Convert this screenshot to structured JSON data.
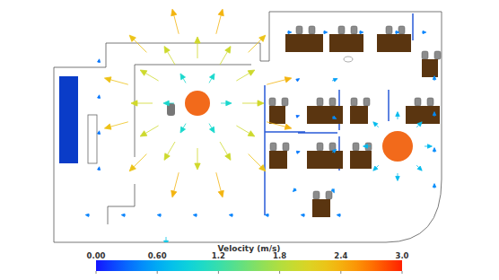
{
  "chart_data": {
    "type": "vector_field",
    "tick_labels": false,
    "xlim": [
      0,
      22
    ],
    "ylim": [
      0,
      13
    ],
    "x": [
      10.5,
      10.17,
      9.25,
      8.0,
      6.75,
      5.83,
      5.5,
      5.83,
      6.75,
      8.0,
      9.25,
      10.17,
      11.86,
      10.83,
      9.04,
      6.96,
      5.17,
      4.14,
      4.14,
      5.17,
      6.96,
      9.04,
      10.83,
      11.86,
      9.3,
      8.65,
      7.35,
      6.7,
      7.35,
      8.65,
      20.65,
      20.21,
      19.15,
      18.09,
      17.65,
      18.09,
      19.15,
      20.21,
      2,
      4,
      6,
      8,
      10,
      12,
      14,
      16,
      2.5,
      2.5,
      2.5,
      2.5,
      13,
      15,
      17,
      19,
      20.5,
      21.2,
      21.2,
      21.2,
      21.2,
      13.5,
      15.5,
      13.5,
      15.5,
      13.5,
      15.5,
      13.5,
      15.5,
      6.25
    ],
    "y": [
      7.75,
      9.0,
      9.9,
      10.25,
      9.9,
      9.0,
      7.75,
      6.5,
      5.6,
      5.25,
      5.6,
      6.5,
      8.79,
      10.58,
      11.61,
      11.61,
      10.58,
      8.79,
      6.71,
      4.92,
      3.89,
      3.89,
      4.92,
      6.71,
      7.75,
      8.88,
      8.88,
      7.75,
      6.62,
      6.62,
      5.35,
      6.41,
      6.85,
      6.41,
      5.35,
      4.29,
      3.85,
      4.29,
      1.5,
      1.5,
      1.5,
      1.5,
      1.5,
      1.5,
      1.5,
      1.5,
      4,
      6,
      8,
      10,
      11.7,
      11.7,
      11.7,
      11.7,
      11.7,
      3,
      5,
      7,
      9,
      3,
      3,
      5,
      5,
      7,
      7,
      9,
      9,
      0.3
    ],
    "u": [
      2.0,
      1.7,
      1.0,
      0,
      -1.0,
      -1.7,
      -2.0,
      -1.7,
      -1.0,
      0,
      1.0,
      1.7,
      2.3,
      1.6,
      0.6,
      -0.6,
      -1.6,
      -2.2,
      -2.2,
      -1.6,
      -0.6,
      0.6,
      1.6,
      2.3,
      1.0,
      0.5,
      -0.5,
      -1.0,
      -0.5,
      0.5,
      0.7,
      0.5,
      0,
      -0.5,
      -0.7,
      -0.5,
      0,
      0.5,
      -0.4,
      -0.4,
      -0.4,
      -0.4,
      -0.4,
      -0.4,
      -0.4,
      -0.4,
      0.05,
      0.05,
      0.05,
      0.05,
      0.4,
      0.4,
      0.4,
      0.4,
      0.4,
      0,
      0,
      0,
      0,
      -0.3,
      0.2,
      0.35,
      0.4,
      0.3,
      0.4,
      0.3,
      0.5,
      0
    ],
    "v": [
      0,
      1.0,
      1.7,
      2.0,
      1.7,
      1.0,
      0,
      -1.0,
      -1.7,
      -2.0,
      -1.7,
      -1.0,
      0.6,
      1.6,
      2.3,
      2.3,
      1.6,
      0.6,
      -0.6,
      -1.6,
      -2.3,
      -2.3,
      -1.6,
      -0.6,
      0,
      0.87,
      0.87,
      0,
      -0.87,
      -0.87,
      0,
      0.5,
      0.7,
      0.5,
      0,
      -0.5,
      -0.7,
      -0.5,
      0.05,
      0.05,
      0.05,
      0.05,
      0.05,
      0.05,
      0.05,
      0.05,
      0.35,
      0.35,
      0.35,
      0.35,
      0,
      0,
      0,
      0,
      0,
      0.45,
      0.45,
      0.45,
      0.45,
      -0.3,
      -0.4,
      0.1,
      0.3,
      0.1,
      -0.2,
      0.2,
      0.2,
      -0.8
    ],
    "colorbar": {
      "title": "Velocity (m/s)",
      "range": [
        0,
        3
      ],
      "ticks": [
        {
          "value": 0,
          "label": "0.00"
        },
        {
          "value": 0.6,
          "label": "0.60"
        },
        1.2,
        1.8,
        2.4,
        {
          "value": 3,
          "label": "3.0"
        }
      ]
    }
  }
}
